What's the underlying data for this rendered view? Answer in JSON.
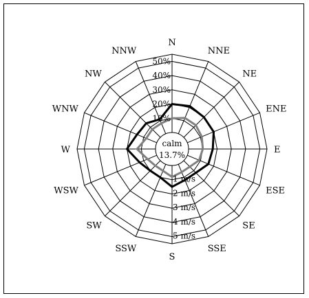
{
  "chart_data": {
    "type": "radar",
    "directions": [
      "N",
      "NNE",
      "NE",
      "ENE",
      "E",
      "ESE",
      "SE",
      "SSE",
      "S",
      "SSW",
      "SW",
      "WSW",
      "W",
      "WNW",
      "NW",
      "NNW"
    ],
    "ring_labels": [
      "10%",
      "20%",
      "30%",
      "40%",
      "50%"
    ],
    "r_range": [
      0,
      55
    ],
    "speed_labels": [
      "1 m/s",
      "2 m/s",
      "3 m/s",
      "4 m/s",
      "5 m/s"
    ],
    "calm": {
      "label": "calm",
      "value": "13.7%"
    },
    "grid": true,
    "series": [
      {
        "color": "#000000",
        "values": [
          20,
          21,
          20,
          20,
          17,
          16,
          12,
          12,
          15,
          10,
          10,
          13,
          20,
          15,
          14,
          11
        ]
      },
      {
        "color": "#808080",
        "values": [
          10,
          12,
          12,
          11,
          10,
          9,
          6,
          6,
          8,
          5,
          5,
          7,
          13,
          8,
          8,
          8
        ]
      }
    ]
  }
}
